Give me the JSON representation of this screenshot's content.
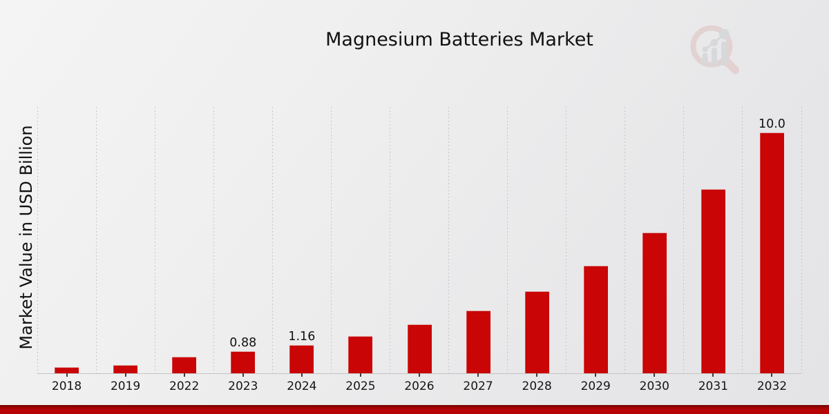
{
  "title": "Magnesium Batteries Market",
  "watermark": {
    "icon": "magnifier-growth-bars-logo",
    "ring_color": "#dfbcbc",
    "bars_color": "#c6c9cc"
  },
  "chart_data": {
    "type": "bar",
    "title": "Magnesium Batteries Market",
    "xlabel": "",
    "ylabel": "Market Value in USD Billion",
    "categories": [
      "2018",
      "2019",
      "2022",
      "2023",
      "2024",
      "2025",
      "2026",
      "2027",
      "2028",
      "2029",
      "2030",
      "2031",
      "2032"
    ],
    "values": [
      0.22,
      0.31,
      0.67,
      0.88,
      1.16,
      1.52,
      2.0,
      2.6,
      3.4,
      4.46,
      5.85,
      7.66,
      10.0
    ],
    "bar_labels": [
      "",
      "",
      "",
      "0.88",
      "1.16",
      "",
      "",
      "",
      "",
      "",
      "",
      "",
      "10.0"
    ],
    "ylim": [
      0,
      11.1
    ],
    "y_ticks_visible": false,
    "grid": "vertical-dotted",
    "legend": "none",
    "bar_color": "#c90505",
    "grid_color": "#c6c6c6",
    "axis_color": "#c3c3c3",
    "tick_color": "#3c3c3c",
    "text_color": "#111111"
  },
  "footer": {
    "accent_bar_color": "#b60404"
  }
}
